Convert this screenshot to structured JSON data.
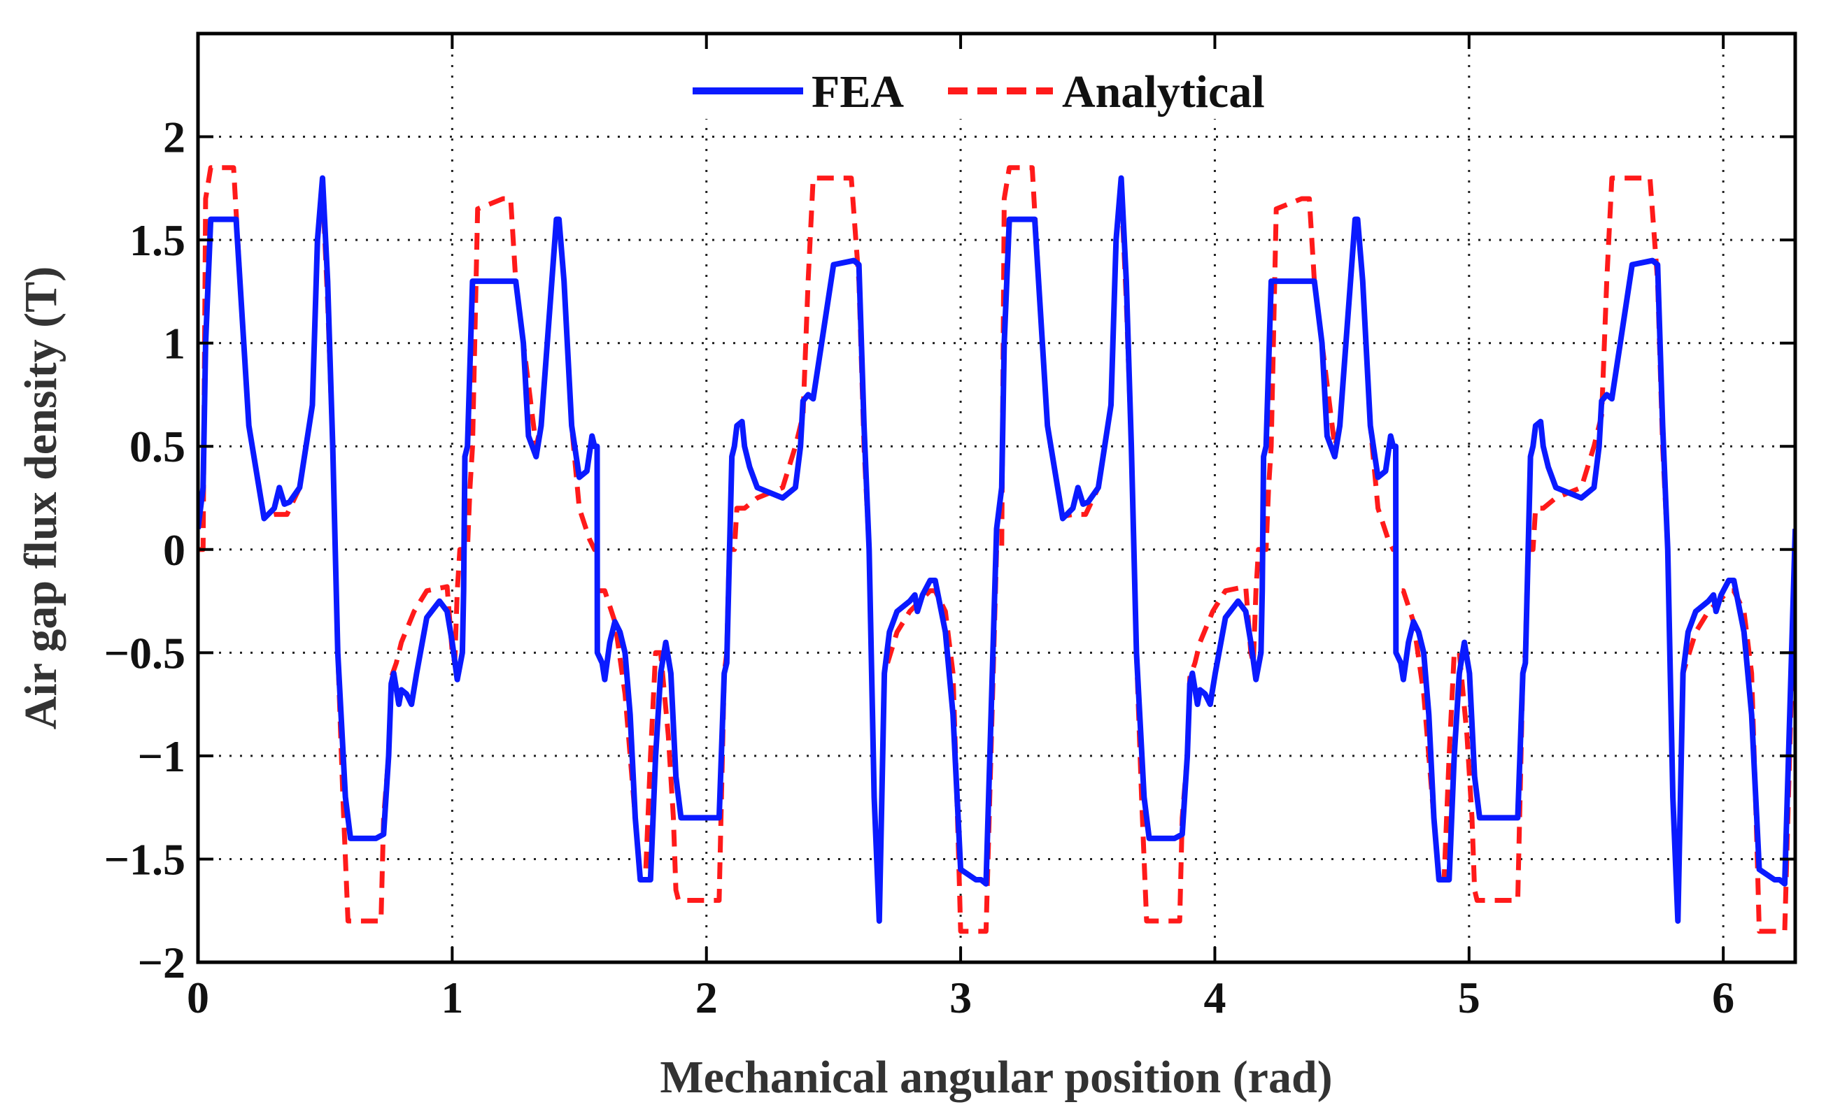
{
  "chart_data": {
    "type": "line",
    "title": "",
    "xlabel": "Mechanical angular position (rad)",
    "ylabel": "Air gap flux density (T)",
    "xlim": [
      0,
      6.283
    ],
    "ylim": [
      -2,
      2.5
    ],
    "xticks": [
      0,
      1,
      2,
      3,
      4,
      5,
      6
    ],
    "xtick_labels": [
      "0",
      "1",
      "2",
      "3",
      "4",
      "5",
      "6"
    ],
    "yticks": [
      -2,
      -1.5,
      -1,
      -0.5,
      0,
      0.5,
      1,
      1.5,
      2
    ],
    "ytick_labels": [
      "−2",
      "−1.5",
      "−1",
      "−0.5",
      "0",
      "0.5",
      "1",
      "1.5",
      "2"
    ],
    "grid": true,
    "legend_position": "top-center",
    "period_rad": 3.1416,
    "series": [
      {
        "name": "FEA",
        "color": "#0a1aff",
        "style": "solid",
        "x": [
          0.0,
          0.02,
          0.03,
          0.05,
          0.15,
          0.17,
          0.2,
          0.26,
          0.3,
          0.32,
          0.34,
          0.36,
          0.4,
          0.45,
          0.47,
          0.49,
          0.51,
          0.53,
          0.55,
          0.58,
          0.6,
          0.65,
          0.7,
          0.73,
          0.75,
          0.76,
          0.77,
          0.79,
          0.8,
          0.82,
          0.84,
          0.86,
          0.9,
          0.95,
          0.98,
          1.0,
          1.02,
          1.04,
          1.045,
          1.05,
          1.06,
          1.08,
          1.15,
          1.25,
          1.28,
          1.3,
          1.33,
          1.35,
          1.38,
          1.41,
          1.42,
          1.44,
          1.47,
          1.5,
          1.53,
          1.55,
          1.56,
          1.57,
          1.5708,
          1.59,
          1.6,
          1.62,
          1.64,
          1.66,
          1.68,
          1.7,
          1.72,
          1.74,
          1.78,
          1.8,
          1.82,
          1.84,
          1.86,
          1.88,
          1.9,
          1.92,
          2.0,
          2.05,
          2.07,
          2.08,
          2.1,
          2.11,
          2.12,
          2.14,
          2.15,
          2.17,
          2.2,
          2.3,
          2.35,
          2.37,
          2.38,
          2.4,
          2.42,
          2.5,
          2.58,
          2.6,
          2.62,
          2.64,
          2.65,
          2.66,
          2.68,
          2.7,
          2.72,
          2.75,
          2.8,
          2.82,
          2.83,
          2.85,
          2.88,
          2.9,
          2.94,
          2.97,
          2.99,
          3.0,
          3.06,
          3.08,
          3.1,
          3.1416
        ],
        "y": [
          0.1,
          0.3,
          1.0,
          1.6,
          1.6,
          1.2,
          0.6,
          0.15,
          0.2,
          0.3,
          0.22,
          0.23,
          0.3,
          0.7,
          1.5,
          1.8,
          1.3,
          0.5,
          -0.5,
          -1.2,
          -1.4,
          -1.4,
          -1.4,
          -1.38,
          -1.0,
          -0.65,
          -0.6,
          -0.75,
          -0.68,
          -0.7,
          -0.75,
          -0.6,
          -0.33,
          -0.25,
          -0.3,
          -0.45,
          -0.63,
          -0.5,
          -0.2,
          0.45,
          0.5,
          1.3,
          1.3,
          1.3,
          1.0,
          0.55,
          0.45,
          0.6,
          1.1,
          1.6,
          1.6,
          1.3,
          0.6,
          0.35,
          0.38,
          0.55,
          0.5,
          0.5,
          -0.5,
          -0.55,
          -0.63,
          -0.45,
          -0.35,
          -0.4,
          -0.5,
          -0.8,
          -1.3,
          -1.6,
          -1.6,
          -1.0,
          -0.6,
          -0.45,
          -0.6,
          -1.1,
          -1.3,
          -1.3,
          -1.3,
          -1.3,
          -0.6,
          -0.55,
          0.45,
          0.5,
          0.6,
          0.62,
          0.5,
          0.4,
          0.3,
          0.25,
          0.3,
          0.5,
          0.72,
          0.75,
          0.73,
          1.38,
          1.4,
          1.38,
          0.6,
          0.0,
          -0.6,
          -1.2,
          -1.8,
          -0.6,
          -0.4,
          -0.3,
          -0.25,
          -0.22,
          -0.3,
          -0.22,
          -0.15,
          -0.15,
          -0.4,
          -0.8,
          -1.3,
          -1.55,
          -1.6,
          -1.6,
          -1.62,
          0.1
        ]
      },
      {
        "name": "Analytical",
        "color": "#ff1a1a",
        "style": "dashed",
        "x": [
          0.0,
          0.02,
          0.03,
          0.05,
          0.14,
          0.17,
          0.2,
          0.26,
          0.3,
          0.35,
          0.4,
          0.45,
          0.47,
          0.49,
          0.51,
          0.53,
          0.55,
          0.57,
          0.59,
          0.62,
          0.72,
          0.73,
          0.75,
          0.76,
          0.78,
          0.8,
          0.85,
          0.9,
          0.98,
          1.0,
          1.01,
          1.02,
          1.03,
          1.04,
          1.06,
          1.07,
          1.08,
          1.1,
          1.2,
          1.23,
          1.25,
          1.3,
          1.33,
          1.35,
          1.38,
          1.41,
          1.42,
          1.44,
          1.47,
          1.5,
          1.54,
          1.56,
          1.57,
          1.5708,
          1.6,
          1.64,
          1.68,
          1.72,
          1.74,
          1.76,
          1.78,
          1.8,
          1.82,
          1.85,
          1.87,
          1.88,
          1.89,
          2.0,
          2.05,
          2.07,
          2.08,
          2.09,
          2.11,
          2.12,
          2.14,
          2.15,
          2.2,
          2.3,
          2.35,
          2.38,
          2.4,
          2.42,
          2.48,
          2.5,
          2.57,
          2.6,
          2.62,
          2.64,
          2.65,
          2.66,
          2.68,
          2.7,
          2.75,
          2.8,
          2.84,
          2.88,
          2.9,
          2.94,
          2.97,
          2.99,
          3.0,
          3.06,
          3.1,
          3.1416
        ],
        "y": [
          0.0,
          0.0,
          1.7,
          1.85,
          1.85,
          1.2,
          0.6,
          0.16,
          0.17,
          0.17,
          0.3,
          0.7,
          1.5,
          1.75,
          1.2,
          0.5,
          -0.5,
          -1.2,
          -1.8,
          -1.8,
          -1.8,
          -1.3,
          -1.0,
          -0.62,
          -0.55,
          -0.45,
          -0.3,
          -0.2,
          -0.18,
          -0.5,
          -0.55,
          -0.2,
          0.0,
          0.0,
          0.0,
          0.3,
          0.5,
          1.65,
          1.7,
          1.7,
          1.3,
          0.8,
          0.5,
          0.6,
          1.1,
          1.6,
          1.6,
          1.3,
          0.6,
          0.2,
          0.05,
          0.0,
          0.0,
          -0.2,
          -0.2,
          -0.35,
          -0.7,
          -1.3,
          -1.6,
          -1.6,
          -1.0,
          -0.5,
          -0.5,
          -0.9,
          -1.3,
          -1.65,
          -1.7,
          -1.7,
          -1.7,
          -0.6,
          -0.5,
          0.0,
          0.0,
          0.2,
          0.2,
          0.2,
          0.25,
          0.3,
          0.5,
          0.65,
          1.3,
          1.8,
          1.8,
          1.8,
          1.8,
          1.3,
          0.5,
          0.0,
          -0.6,
          -1.2,
          -1.8,
          -0.6,
          -0.4,
          -0.3,
          -0.25,
          -0.2,
          -0.2,
          -0.3,
          -0.6,
          -1.4,
          -1.85,
          -1.85,
          -1.85,
          0.0
        ]
      }
    ]
  }
}
